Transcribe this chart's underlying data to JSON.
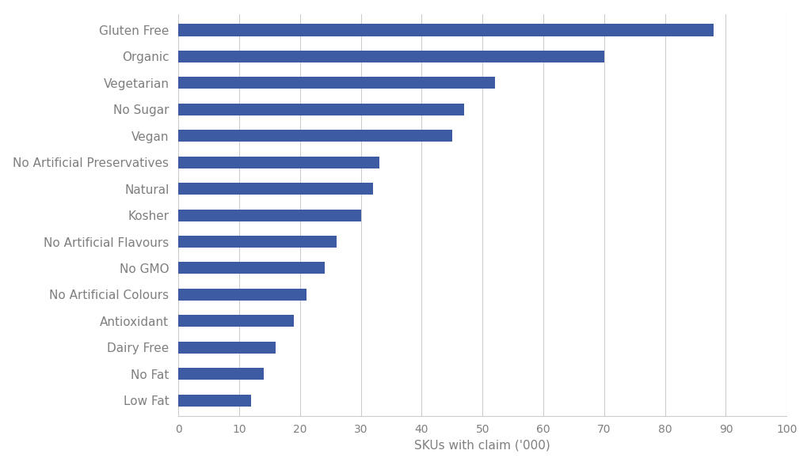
{
  "categories": [
    "Low Fat",
    "No Fat",
    "Dairy Free",
    "Antioxidant",
    "No Artificial Colours",
    "No GMO",
    "No Artificial Flavours",
    "Kosher",
    "Natural",
    "No Artificial Preservatives",
    "Vegan",
    "No Sugar",
    "Vegetarian",
    "Organic",
    "Gluten Free"
  ],
  "values": [
    12,
    14,
    16,
    19,
    21,
    24,
    26,
    30,
    32,
    33,
    45,
    47,
    52,
    70,
    88
  ],
  "bar_color": "#3c5ba3",
  "xlabel": "SKUs with claim ('000)",
  "xlim": [
    0,
    100
  ],
  "xticks": [
    0,
    10,
    20,
    30,
    40,
    50,
    60,
    70,
    80,
    90,
    100
  ],
  "background_color": "#ffffff",
  "grid_color": "#cccccc",
  "label_fontsize": 11,
  "tick_fontsize": 10,
  "ylabel_color": "#7f7f7f",
  "xlabel_color": "#7f7f7f",
  "tick_color": "#7f7f7f",
  "bar_height": 0.45
}
